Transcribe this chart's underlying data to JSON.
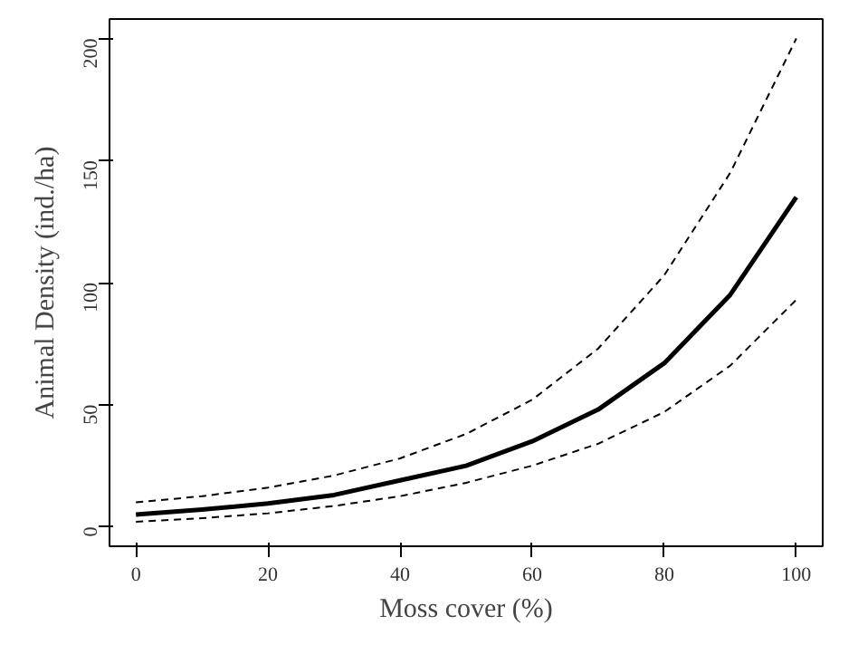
{
  "chart_data": {
    "type": "line",
    "xlabel": "Moss cover (%)",
    "ylabel": "Animal Density (ind./ha)",
    "x": [
      0,
      10,
      20,
      30,
      40,
      50,
      60,
      70,
      80,
      90,
      100
    ],
    "xlim": [
      -4,
      104
    ],
    "ylim": [
      -8,
      208
    ],
    "xticks": [
      0,
      20,
      40,
      60,
      80,
      100
    ],
    "yticks": [
      0,
      50,
      100,
      150,
      200
    ],
    "grid": false,
    "marker": "none",
    "series": [
      {
        "color": "#000000",
        "line_style": "solid",
        "values": [
          5,
          7,
          9.5,
          13,
          19,
          25,
          35,
          48,
          67,
          95,
          135
        ]
      },
      {
        "color": "#000000",
        "line_style": "dashed",
        "values": [
          10,
          12.5,
          16,
          21,
          28,
          38,
          52,
          73,
          103,
          145,
          200
        ]
      },
      {
        "color": "#000000",
        "line_style": "dashed",
        "values": [
          2,
          3.5,
          5.5,
          8.5,
          12.5,
          18,
          25,
          34,
          47,
          66,
          93
        ]
      }
    ]
  }
}
